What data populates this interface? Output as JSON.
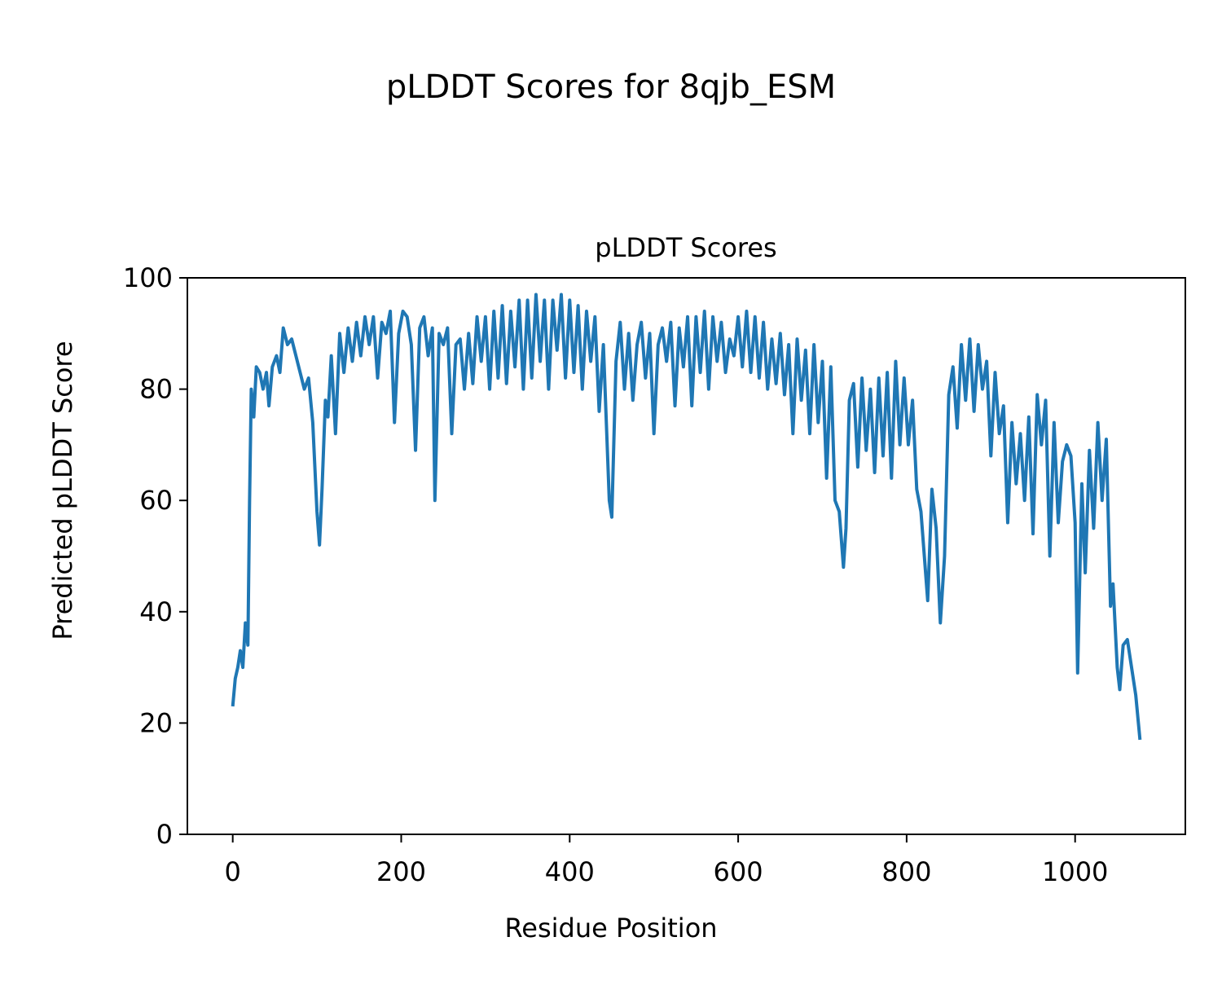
{
  "chart_data": {
    "type": "line",
    "suptitle": "pLDDT Scores for 8qjb_ESM",
    "title": "pLDDT Scores",
    "xlabel": "Residue Position",
    "ylabel": "Predicted pLDDT Score",
    "color": "#1f77b4",
    "grid": false,
    "xlim": [
      -53.85,
      1130.85
    ],
    "ylim": [
      0,
      100
    ],
    "xticks": [
      0,
      200,
      400,
      600,
      800,
      1000
    ],
    "yticks": [
      0,
      20,
      40,
      60,
      80,
      100
    ],
    "x": [
      0,
      3,
      6,
      9,
      12,
      15,
      18,
      20,
      22,
      25,
      28,
      32,
      36,
      40,
      43,
      47,
      52,
      56,
      60,
      65,
      70,
      75,
      80,
      85,
      90,
      95,
      100,
      103,
      106,
      110,
      113,
      117,
      122,
      127,
      132,
      137,
      142,
      147,
      152,
      157,
      162,
      167,
      172,
      177,
      182,
      187,
      192,
      197,
      202,
      207,
      212,
      217,
      222,
      227,
      232,
      237,
      240,
      245,
      250,
      255,
      260,
      265,
      270,
      275,
      280,
      285,
      290,
      295,
      300,
      305,
      310,
      315,
      320,
      325,
      330,
      335,
      340,
      345,
      350,
      355,
      360,
      365,
      370,
      375,
      380,
      385,
      390,
      395,
      400,
      405,
      410,
      415,
      420,
      425,
      430,
      435,
      440,
      447,
      450,
      455,
      460,
      465,
      470,
      475,
      480,
      485,
      490,
      495,
      500,
      505,
      510,
      515,
      520,
      525,
      530,
      535,
      540,
      545,
      550,
      555,
      560,
      565,
      570,
      575,
      580,
      585,
      590,
      595,
      600,
      605,
      610,
      615,
      620,
      625,
      630,
      635,
      640,
      645,
      650,
      655,
      660,
      665,
      670,
      675,
      680,
      685,
      690,
      695,
      700,
      705,
      710,
      715,
      720,
      725,
      728,
      732,
      737,
      742,
      747,
      752,
      757,
      762,
      767,
      772,
      777,
      782,
      787,
      792,
      797,
      802,
      807,
      812,
      817,
      822,
      825,
      830,
      835,
      840,
      845,
      850,
      855,
      860,
      865,
      870,
      875,
      880,
      885,
      890,
      895,
      900,
      905,
      910,
      915,
      920,
      925,
      930,
      935,
      940,
      945,
      950,
      955,
      960,
      965,
      970,
      975,
      980,
      985,
      990,
      995,
      1000,
      1003,
      1008,
      1012,
      1017,
      1022,
      1027,
      1032,
      1037,
      1042,
      1045,
      1050,
      1053,
      1057,
      1062,
      1067,
      1072,
      1077
    ],
    "values": [
      23,
      28,
      30,
      33,
      30,
      38,
      34,
      60,
      80,
      75,
      84,
      83,
      80,
      83,
      77,
      84,
      86,
      83,
      91,
      88,
      89,
      86,
      83,
      80,
      82,
      74,
      58,
      52,
      62,
      78,
      75,
      86,
      72,
      90,
      83,
      91,
      85,
      92,
      86,
      93,
      88,
      93,
      82,
      92,
      90,
      94,
      74,
      90,
      94,
      93,
      88,
      69,
      91,
      93,
      86,
      91,
      60,
      90,
      88,
      91,
      72,
      88,
      89,
      80,
      90,
      81,
      93,
      85,
      93,
      80,
      94,
      82,
      95,
      81,
      94,
      84,
      96,
      80,
      96,
      82,
      97,
      85,
      96,
      80,
      96,
      87,
      97,
      82,
      96,
      83,
      95,
      80,
      94,
      85,
      93,
      76,
      88,
      60,
      57,
      85,
      92,
      80,
      90,
      78,
      88,
      92,
      82,
      90,
      72,
      88,
      91,
      85,
      92,
      77,
      91,
      84,
      93,
      77,
      93,
      83,
      94,
      80,
      93,
      85,
      92,
      83,
      89,
      86,
      93,
      84,
      94,
      83,
      93,
      82,
      92,
      80,
      89,
      81,
      90,
      79,
      88,
      72,
      89,
      78,
      87,
      72,
      88,
      74,
      85,
      64,
      84,
      60,
      58,
      48,
      55,
      78,
      81,
      66,
      82,
      69,
      80,
      65,
      82,
      68,
      83,
      64,
      85,
      70,
      82,
      70,
      78,
      62,
      58,
      48,
      42,
      62,
      55,
      38,
      50,
      79,
      84,
      73,
      88,
      78,
      89,
      76,
      88,
      80,
      85,
      68,
      83,
      72,
      77,
      56,
      74,
      63,
      72,
      60,
      75,
      54,
      79,
      70,
      78,
      50,
      74,
      56,
      67,
      70,
      68,
      56,
      29,
      63,
      47,
      69,
      55,
      74,
      60,
      71,
      41,
      45,
      30,
      26,
      34,
      35,
      30,
      25,
      17
    ]
  }
}
